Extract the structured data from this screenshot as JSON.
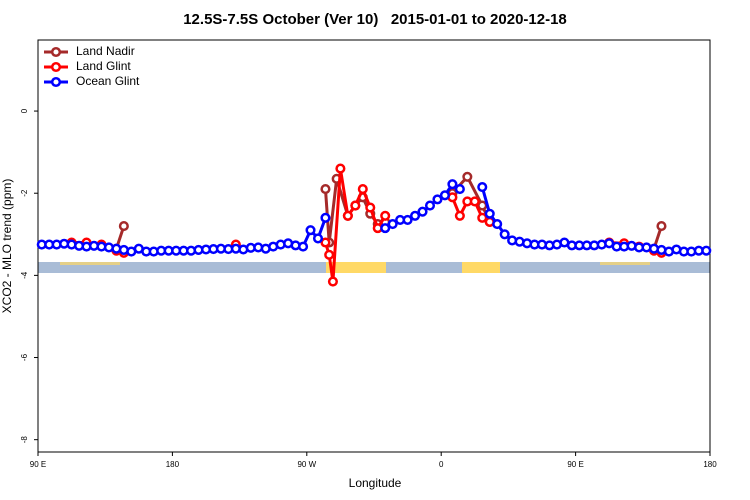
{
  "chart_data": {
    "type": "line",
    "title": "12.5S-7.5S October (Ver 10)   2015-01-01 to 2020-12-18",
    "x_label": "Longitude",
    "y_label": "XCO2 - MLO trend (ppm)",
    "xlim": [
      90,
      540
    ],
    "ylim": [
      -8.3,
      1.73
    ],
    "xticks": [
      {
        "value": 90,
        "label": "90 E"
      },
      {
        "value": 180,
        "label": "180"
      },
      {
        "value": 270,
        "label": "90 W"
      },
      {
        "value": 360,
        "label": "0"
      },
      {
        "value": 450,
        "label": "90 E"
      },
      {
        "value": 540,
        "label": "180"
      }
    ],
    "yticks": [
      0,
      -2,
      -4,
      -6,
      -8
    ],
    "legend": "top-left",
    "series": [
      {
        "name": "Land Nadir",
        "color": "#a52a2a",
        "x": [
          142.5,
          147.5,
          200,
          282.5,
          285,
          290,
          297.5,
          302.5,
          307.5,
          312.5,
          317.5,
          322.5,
          345,
          367.5,
          377.5,
          387.5,
          392.5,
          450,
          502.5,
          507.5
        ],
        "values": [
          -3.35,
          -2.8,
          null,
          -1.9,
          -3.2,
          -1.65,
          -2.55,
          -2.3,
          -2.1,
          -2.5,
          -2.75,
          -2.7,
          null,
          -2.0,
          -1.6,
          -2.3,
          -2.7,
          null,
          -3.35,
          -2.8
        ]
      },
      {
        "name": "Land Glint",
        "color": "#ff0000",
        "x": [
          112.5,
          122.5,
          132.5,
          142.5,
          147.5,
          185,
          222.5,
          250,
          282.5,
          285,
          287.5,
          292.5,
          297.5,
          302.5,
          307.5,
          312.5,
          317.5,
          322.5,
          345,
          367.5,
          372.5,
          377.5,
          382.5,
          387.5,
          392.5,
          430,
          472.5,
          482.5,
          492.5,
          502.5,
          507.5
        ],
        "values": [
          -3.2,
          -3.2,
          -3.25,
          -3.4,
          -3.45,
          null,
          -3.25,
          null,
          -3.2,
          -3.5,
          -4.15,
          -1.4,
          -2.55,
          -2.3,
          -1.9,
          -2.35,
          -2.85,
          -2.55,
          null,
          -2.1,
          -2.55,
          -2.2,
          -2.2,
          -2.6,
          -2.7,
          null,
          -3.2,
          -3.22,
          -3.3,
          -3.4,
          -3.45
        ]
      },
      {
        "name": "Ocean Glint",
        "color": "#0000ff",
        "x": [
          92.5,
          97.5,
          102.5,
          107.5,
          112.5,
          117.5,
          122.5,
          127.5,
          132.5,
          137.5,
          142.5,
          147.5,
          152.5,
          157.5,
          162.5,
          167.5,
          172.5,
          177.5,
          182.5,
          187.5,
          192.5,
          197.5,
          202.5,
          207.5,
          212.5,
          217.5,
          222.5,
          227.5,
          232.5,
          237.5,
          242.5,
          247.5,
          252.5,
          257.5,
          262.5,
          267.5,
          272.5,
          277.5,
          282.5,
          287.5,
          292.5,
          297.5,
          302.5,
          307.5,
          312.5,
          317.5,
          322.5,
          327.5,
          332.5,
          337.5,
          342.5,
          347.5,
          352.5,
          357.5,
          362.5,
          367.5,
          372.5,
          377.5,
          382.5,
          387.5,
          392.5,
          397.5,
          402.5,
          407.5,
          412.5,
          417.5,
          422.5,
          427.5,
          432.5,
          437.5,
          442.5,
          447.5,
          452.5,
          457.5,
          462.5,
          467.5,
          472.5,
          477.5,
          482.5,
          487.5,
          492.5,
          497.5,
          502.5,
          507.5,
          512.5,
          517.5,
          522.5,
          527.5,
          532.5,
          537.5
        ],
        "values": [
          -3.25,
          -3.25,
          -3.25,
          -3.23,
          -3.25,
          -3.28,
          -3.3,
          -3.28,
          -3.3,
          -3.32,
          -3.35,
          -3.38,
          -3.42,
          -3.35,
          -3.42,
          -3.42,
          -3.4,
          -3.4,
          -3.4,
          -3.4,
          -3.4,
          -3.38,
          -3.37,
          -3.36,
          -3.35,
          -3.36,
          -3.35,
          -3.37,
          -3.33,
          -3.32,
          -3.35,
          -3.3,
          -3.25,
          -3.22,
          -3.27,
          -3.3,
          -2.9,
          -3.1,
          -2.6,
          null,
          null,
          null,
          null,
          null,
          null,
          null,
          -2.85,
          -2.75,
          -2.65,
          -2.65,
          -2.55,
          -2.45,
          -2.3,
          -2.15,
          -2.05,
          -1.78,
          -1.9,
          null,
          null,
          -1.85,
          -2.5,
          -2.75,
          -3.0,
          -3.15,
          -3.18,
          -3.22,
          -3.25,
          -3.25,
          -3.27,
          -3.25,
          -3.2,
          -3.27,
          -3.27,
          -3.27,
          -3.27,
          -3.25,
          -3.22,
          -3.3,
          -3.3,
          -3.28,
          -3.32,
          -3.32,
          -3.35,
          -3.38,
          -3.42,
          -3.37,
          -3.42,
          -3.42,
          -3.4,
          -3.4
        ]
      }
    ]
  }
}
